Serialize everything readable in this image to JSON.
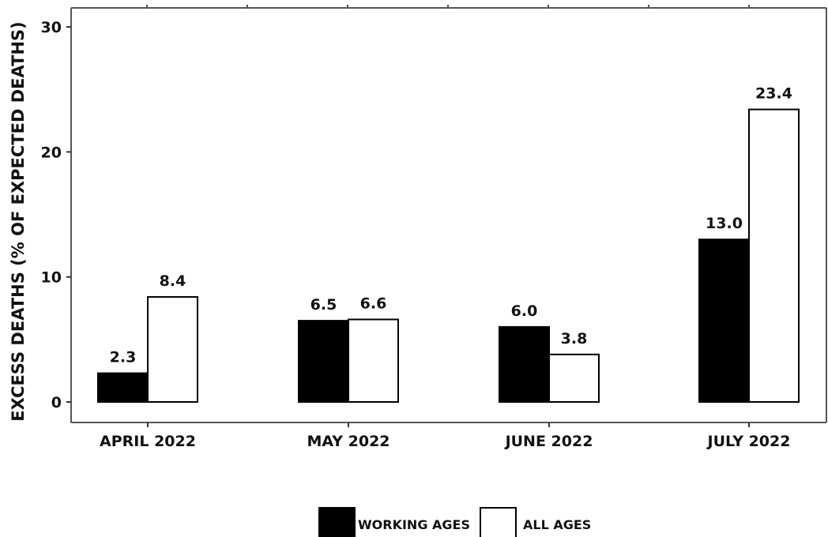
{
  "chart_data": {
    "type": "bar",
    "title": "",
    "xlabel": "",
    "ylabel": "EXCESS DEATHS (% OF EXPECTED DEATHS)",
    "categories": [
      "APRIL 2022",
      "MAY 2022",
      "JUNE 2022",
      "JULY 2022"
    ],
    "series": [
      {
        "name": "WORKING AGES",
        "color": "#000000",
        "values": [
          2.3,
          6.5,
          6.0,
          13.0
        ],
        "labels": [
          "2.3",
          "6.5",
          "6.0",
          "13.0"
        ]
      },
      {
        "name": "ALL AGES",
        "color": "#ffffff",
        "values": [
          8.4,
          6.6,
          3.8,
          23.4
        ],
        "labels": [
          "8.4",
          "6.6",
          "3.8",
          "23.4"
        ]
      }
    ],
    "ylim": [
      0,
      30
    ],
    "yticks": [
      0,
      10,
      20,
      30
    ],
    "ytick_labels": [
      "0",
      "10",
      "20",
      "30"
    ],
    "grid": false,
    "legend_position": "bottom"
  }
}
